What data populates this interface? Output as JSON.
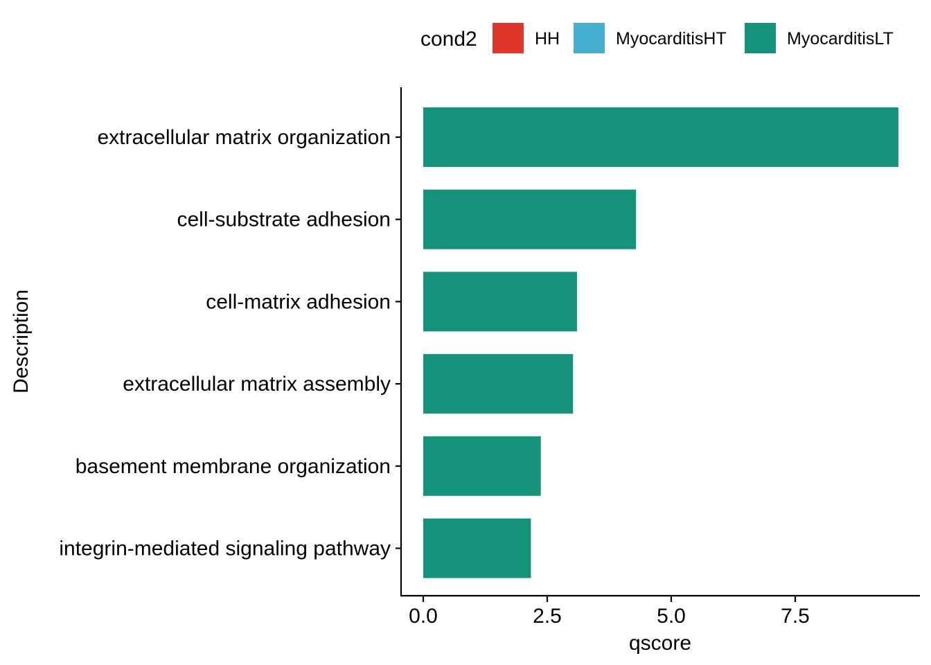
{
  "chart_data": {
    "type": "bar",
    "orientation": "horizontal",
    "xlabel": "qscore",
    "ylabel": "Description",
    "categories": [
      "extracellular matrix organization",
      "cell-substrate adhesion",
      "cell-matrix adhesion",
      "extracellular matrix assembly",
      "basement membrane organization",
      "integrin-mediated signaling pathway"
    ],
    "series": [
      {
        "name": "MyocarditisLT",
        "color": "#14937A",
        "values": [
          9.58,
          4.29,
          3.1,
          3.02,
          2.37,
          2.17
        ]
      }
    ],
    "x_ticks": [
      "0.0",
      "2.5",
      "5.0",
      "7.5"
    ],
    "x_tick_values": [
      0,
      2.5,
      5.0,
      7.5
    ],
    "xlim": [
      -0.45,
      10.05
    ],
    "grid": false,
    "legend": {
      "title": "cond2",
      "position": "top",
      "entries": [
        {
          "label": "HH",
          "color": "#E0352B"
        },
        {
          "label": "MyocarditisHT",
          "color": "#46AECF"
        },
        {
          "label": "MyocarditisLT",
          "color": "#14937A"
        }
      ]
    }
  }
}
